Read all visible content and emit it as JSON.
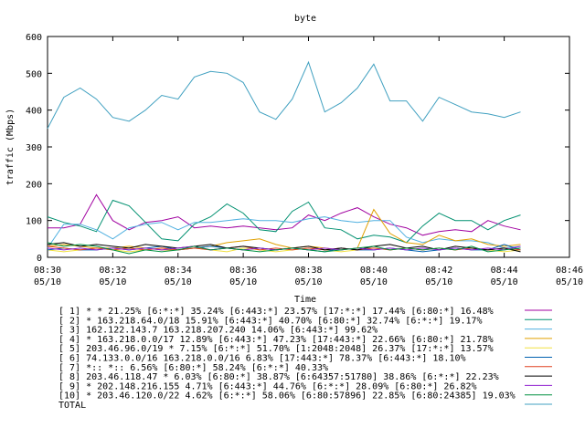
{
  "chart_data": {
    "type": "line",
    "title": "byte",
    "xlabel": "Time",
    "ylabel": "traffic (Mbps)",
    "ylim": [
      0,
      600
    ],
    "yticks": [
      "0",
      "100",
      "200",
      "300",
      "400",
      "500",
      "600"
    ],
    "xlim": [
      "08:30",
      "08:46"
    ],
    "xticks": [
      {
        "time": "08:30",
        "date": "05/10"
      },
      {
        "time": "08:32",
        "date": "05/10"
      },
      {
        "time": "08:34",
        "date": "05/10"
      },
      {
        "time": "08:36",
        "date": "05/10"
      },
      {
        "time": "08:38",
        "date": "05/10"
      },
      {
        "time": "08:40",
        "date": "05/10"
      },
      {
        "time": "08:42",
        "date": "05/10"
      },
      {
        "time": "08:44",
        "date": "05/10"
      },
      {
        "time": "08:46",
        "date": "05/10"
      }
    ],
    "grid": false,
    "legend_position": "bottom",
    "x": [
      "08:30",
      "08:30:30",
      "08:31",
      "08:31:30",
      "08:32",
      "08:32:30",
      "08:33",
      "08:33:30",
      "08:34",
      "08:34:30",
      "08:35",
      "08:35:30",
      "08:36",
      "08:36:30",
      "08:37",
      "08:37:30",
      "08:38",
      "08:38:30",
      "08:39",
      "08:39:30",
      "08:40",
      "08:40:30",
      "08:41",
      "08:41:30",
      "08:42",
      "08:42:30",
      "08:43",
      "08:43:30",
      "08:44",
      "08:44:30"
    ],
    "series": [
      {
        "name": "[ 1] * * 21.25%  [6:*:*] 35.24% [6:443:*] 23.57% [17:*:*] 17.44% [6:80:*] 16.48%",
        "color": "#a000a0",
        "values": [
          80,
          80,
          90,
          170,
          100,
          75,
          95,
          100,
          110,
          80,
          85,
          80,
          85,
          80,
          75,
          80,
          115,
          100,
          120,
          135,
          110,
          90,
          80,
          60,
          70,
          75,
          70,
          100,
          85,
          75
        ]
      },
      {
        "name": "[ 2] * 163.218.64.0/18 15.91%  [6:443:*] 40.70% [6:80:*] 32.74% [6:*:*] 19.17%",
        "color": "#009070",
        "values": [
          110,
          95,
          85,
          70,
          155,
          140,
          95,
          50,
          45,
          90,
          110,
          145,
          120,
          75,
          70,
          125,
          150,
          80,
          75,
          50,
          60,
          55,
          40,
          85,
          120,
          100,
          100,
          75,
          100,
          115
        ]
      },
      {
        "name": "[ 3] 162.122.143.7 163.218.207.240 14.06%  [6:443:*] 99.62%",
        "color": "#50b0e0",
        "values": [
          25,
          90,
          90,
          75,
          50,
          80,
          90,
          95,
          75,
          95,
          95,
          100,
          105,
          100,
          100,
          95,
          105,
          110,
          100,
          95,
          100,
          100,
          55,
          40,
          50,
          45,
          45,
          40,
          25,
          30
        ]
      },
      {
        "name": "[ 4] * 163.218.0.0/17 12.89%  [6:443:*] 47.23% [17:443:*] 22.66% [6:80:*] 21.78%",
        "color": "#e0a000",
        "values": [
          30,
          35,
          30,
          25,
          25,
          30,
          25,
          20,
          20,
          25,
          30,
          40,
          45,
          50,
          35,
          25,
          30,
          25,
          20,
          25,
          130,
          65,
          40,
          35,
          60,
          45,
          50,
          35,
          30,
          35
        ]
      },
      {
        "name": "[ 5] 203.46.96.0/19 * 7.15%  [6:*:*] 51.70% [1:2048:2048] 26.37% [17:*:*] 13.57%",
        "color": "#f0e040",
        "values": [
          20,
          15,
          20,
          25,
          20,
          15,
          20,
          25,
          20,
          25,
          20,
          15,
          25,
          20,
          15,
          20,
          25,
          20,
          15,
          20,
          25,
          20,
          25,
          20,
          25,
          20,
          25,
          20,
          15,
          20
        ]
      },
      {
        "name": "[ 6] 74.133.0.0/16 163.218.0.0/16 6.83%  [17:443:*] 78.37% [6:443:*] 18.10%",
        "color": "#0060b0",
        "values": [
          20,
          25,
          20,
          20,
          25,
          20,
          25,
          30,
          20,
          25,
          30,
          25,
          20,
          25,
          20,
          25,
          20,
          15,
          25,
          20,
          20,
          25,
          20,
          15,
          20,
          25,
          20,
          20,
          35,
          20
        ]
      },
      {
        "name": "[ 7] *:: *:: 6.56%  [6:80:*] 58.24% [6:*:*] 40.33%",
        "color": "#e04020",
        "values": [
          30,
          25,
          20,
          25,
          20,
          25,
          20,
          25,
          20,
          25,
          20,
          25,
          30,
          20,
          25,
          20,
          25,
          20,
          25,
          20,
          25,
          20,
          25,
          20,
          25,
          20,
          25,
          20,
          25,
          20
        ]
      },
      {
        "name": "[ 8] 203.46.118.47 * 6.03%  [6:80:*] 38.87% [6:64357:51780] 38.86% [6:*:*] 22.23%",
        "color": "#000000",
        "values": [
          35,
          40,
          30,
          35,
          30,
          25,
          35,
          30,
          25,
          30,
          35,
          25,
          30,
          25,
          20,
          25,
          30,
          20,
          25,
          20,
          30,
          35,
          25,
          30,
          20,
          30,
          25,
          20,
          25,
          15
        ]
      },
      {
        "name": "[ 9] * 202.148.216.155 4.71%  [6:443:*] 44.76% [6:*:*] 28.09% [6:80:*] 26.82%",
        "color": "#9020d0",
        "values": [
          25,
          20,
          25,
          20,
          25,
          20,
          25,
          20,
          25,
          30,
          20,
          25,
          20,
          25,
          20,
          25,
          20,
          25,
          20,
          25,
          20,
          25,
          20,
          25,
          20,
          25,
          20,
          25,
          20,
          30
        ]
      },
      {
        "name": "[10] * 203.46.120.0/22 4.62%  [6:*:*] 58.06% [6:80:57896] 22.85% [6:80:24385] 19.03%",
        "color": "#009040",
        "values": [
          40,
          30,
          35,
          30,
          20,
          10,
          20,
          15,
          20,
          30,
          20,
          25,
          20,
          15,
          20,
          25,
          20,
          15,
          20,
          25,
          30,
          20,
          25,
          20,
          25,
          20,
          30,
          15,
          20,
          25
        ]
      },
      {
        "name": "TOTAL",
        "color": "#40a0c0",
        "values": [
          350,
          435,
          460,
          430,
          380,
          370,
          400,
          440,
          430,
          490,
          505,
          500,
          475,
          395,
          375,
          430,
          530,
          395,
          420,
          460,
          525,
          425,
          425,
          370,
          435,
          415,
          395,
          390,
          380,
          395
        ]
      }
    ]
  }
}
